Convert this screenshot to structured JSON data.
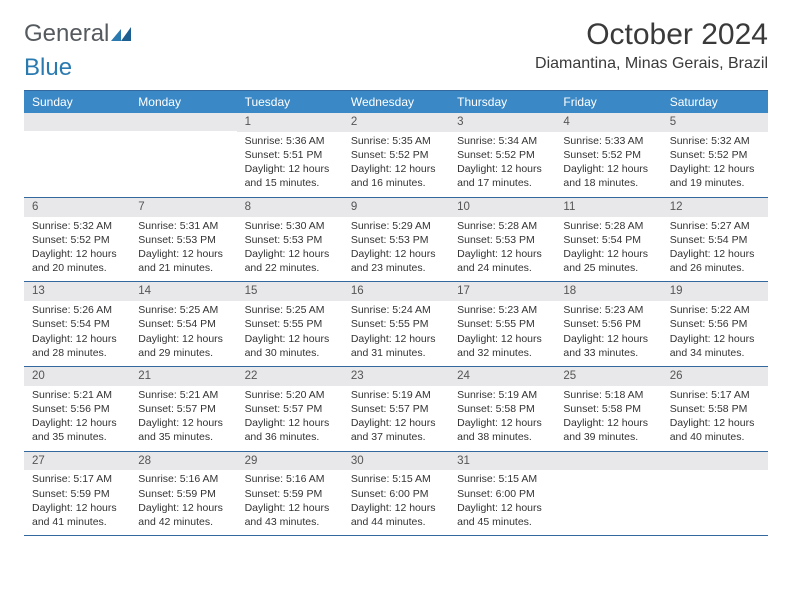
{
  "brand": {
    "word1": "General",
    "word2": "Blue",
    "logo_color": "#2a7ab0",
    "text_color": "#555a5f"
  },
  "title": "October 2024",
  "location": "Diamantina, Minas Gerais, Brazil",
  "header_bg": "#3a88c5",
  "border_color": "#33689e",
  "daynum_bg": "#e8e8ea",
  "dow": [
    "Sunday",
    "Monday",
    "Tuesday",
    "Wednesday",
    "Thursday",
    "Friday",
    "Saturday"
  ],
  "weeks": [
    [
      null,
      null,
      {
        "n": "1",
        "sunrise": "5:36 AM",
        "sunset": "5:51 PM",
        "daylight": "12 hours and 15 minutes."
      },
      {
        "n": "2",
        "sunrise": "5:35 AM",
        "sunset": "5:52 PM",
        "daylight": "12 hours and 16 minutes."
      },
      {
        "n": "3",
        "sunrise": "5:34 AM",
        "sunset": "5:52 PM",
        "daylight": "12 hours and 17 minutes."
      },
      {
        "n": "4",
        "sunrise": "5:33 AM",
        "sunset": "5:52 PM",
        "daylight": "12 hours and 18 minutes."
      },
      {
        "n": "5",
        "sunrise": "5:32 AM",
        "sunset": "5:52 PM",
        "daylight": "12 hours and 19 minutes."
      }
    ],
    [
      {
        "n": "6",
        "sunrise": "5:32 AM",
        "sunset": "5:52 PM",
        "daylight": "12 hours and 20 minutes."
      },
      {
        "n": "7",
        "sunrise": "5:31 AM",
        "sunset": "5:53 PM",
        "daylight": "12 hours and 21 minutes."
      },
      {
        "n": "8",
        "sunrise": "5:30 AM",
        "sunset": "5:53 PM",
        "daylight": "12 hours and 22 minutes."
      },
      {
        "n": "9",
        "sunrise": "5:29 AM",
        "sunset": "5:53 PM",
        "daylight": "12 hours and 23 minutes."
      },
      {
        "n": "10",
        "sunrise": "5:28 AM",
        "sunset": "5:53 PM",
        "daylight": "12 hours and 24 minutes."
      },
      {
        "n": "11",
        "sunrise": "5:28 AM",
        "sunset": "5:54 PM",
        "daylight": "12 hours and 25 minutes."
      },
      {
        "n": "12",
        "sunrise": "5:27 AM",
        "sunset": "5:54 PM",
        "daylight": "12 hours and 26 minutes."
      }
    ],
    [
      {
        "n": "13",
        "sunrise": "5:26 AM",
        "sunset": "5:54 PM",
        "daylight": "12 hours and 28 minutes."
      },
      {
        "n": "14",
        "sunrise": "5:25 AM",
        "sunset": "5:54 PM",
        "daylight": "12 hours and 29 minutes."
      },
      {
        "n": "15",
        "sunrise": "5:25 AM",
        "sunset": "5:55 PM",
        "daylight": "12 hours and 30 minutes."
      },
      {
        "n": "16",
        "sunrise": "5:24 AM",
        "sunset": "5:55 PM",
        "daylight": "12 hours and 31 minutes."
      },
      {
        "n": "17",
        "sunrise": "5:23 AM",
        "sunset": "5:55 PM",
        "daylight": "12 hours and 32 minutes."
      },
      {
        "n": "18",
        "sunrise": "5:23 AM",
        "sunset": "5:56 PM",
        "daylight": "12 hours and 33 minutes."
      },
      {
        "n": "19",
        "sunrise": "5:22 AM",
        "sunset": "5:56 PM",
        "daylight": "12 hours and 34 minutes."
      }
    ],
    [
      {
        "n": "20",
        "sunrise": "5:21 AM",
        "sunset": "5:56 PM",
        "daylight": "12 hours and 35 minutes."
      },
      {
        "n": "21",
        "sunrise": "5:21 AM",
        "sunset": "5:57 PM",
        "daylight": "12 hours and 35 minutes."
      },
      {
        "n": "22",
        "sunrise": "5:20 AM",
        "sunset": "5:57 PM",
        "daylight": "12 hours and 36 minutes."
      },
      {
        "n": "23",
        "sunrise": "5:19 AM",
        "sunset": "5:57 PM",
        "daylight": "12 hours and 37 minutes."
      },
      {
        "n": "24",
        "sunrise": "5:19 AM",
        "sunset": "5:58 PM",
        "daylight": "12 hours and 38 minutes."
      },
      {
        "n": "25",
        "sunrise": "5:18 AM",
        "sunset": "5:58 PM",
        "daylight": "12 hours and 39 minutes."
      },
      {
        "n": "26",
        "sunrise": "5:17 AM",
        "sunset": "5:58 PM",
        "daylight": "12 hours and 40 minutes."
      }
    ],
    [
      {
        "n": "27",
        "sunrise": "5:17 AM",
        "sunset": "5:59 PM",
        "daylight": "12 hours and 41 minutes."
      },
      {
        "n": "28",
        "sunrise": "5:16 AM",
        "sunset": "5:59 PM",
        "daylight": "12 hours and 42 minutes."
      },
      {
        "n": "29",
        "sunrise": "5:16 AM",
        "sunset": "5:59 PM",
        "daylight": "12 hours and 43 minutes."
      },
      {
        "n": "30",
        "sunrise": "5:15 AM",
        "sunset": "6:00 PM",
        "daylight": "12 hours and 44 minutes."
      },
      {
        "n": "31",
        "sunrise": "5:15 AM",
        "sunset": "6:00 PM",
        "daylight": "12 hours and 45 minutes."
      },
      null,
      null
    ]
  ],
  "labels": {
    "sunrise": "Sunrise: ",
    "sunset": "Sunset: ",
    "daylight": "Daylight: "
  }
}
